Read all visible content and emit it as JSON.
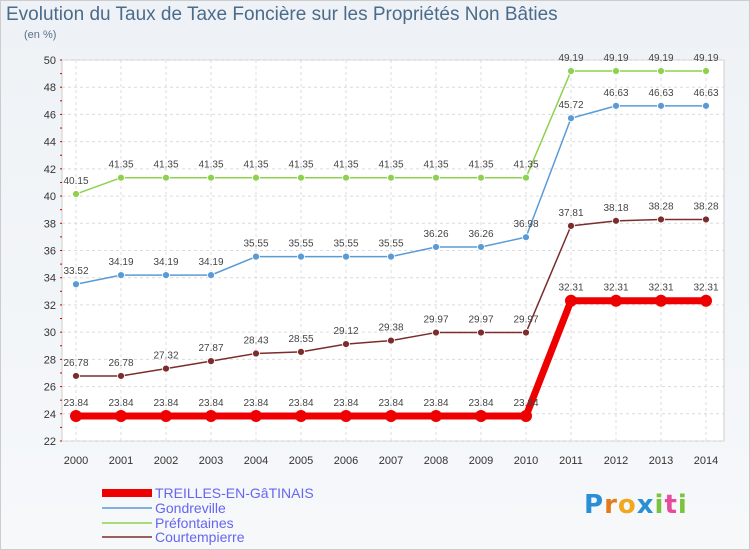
{
  "title": "Evolution du Taux de Taxe Foncière sur les Propriétés Non Bâties",
  "subtitle": "(en %)",
  "logo_text": "Proxiti",
  "chart_data": {
    "type": "line",
    "title": "Evolution du Taux de Taxe Foncière sur les Propriétés Non Bâties",
    "ylabel": "(en %)",
    "xlabel": "",
    "ylim": [
      22,
      50
    ],
    "yticks": [
      22,
      24,
      26,
      28,
      30,
      32,
      34,
      36,
      38,
      40,
      42,
      44,
      46,
      48,
      50
    ],
    "grid": true,
    "legend_position": "bottom",
    "x": [
      "2000",
      "2001",
      "2002",
      "2003",
      "2004",
      "2005",
      "2006",
      "2007",
      "2008",
      "2009",
      "2010",
      "2011",
      "2012",
      "2013",
      "2014"
    ],
    "series": [
      {
        "name": "TREILLES-EN-GâTINAIS",
        "color": "#ee0000",
        "values": [
          23.84,
          23.84,
          23.84,
          23.84,
          23.84,
          23.84,
          23.84,
          23.84,
          23.84,
          23.84,
          23.84,
          32.31,
          32.31,
          32.31,
          32.31
        ],
        "labels": [
          "23.84",
          "23.84",
          "23.84",
          "23.84",
          "23.84",
          "23.84",
          "23.84",
          "23.84",
          "23.84",
          "23.84",
          "23.84",
          "32.31",
          "32.31",
          "32.31",
          "32.31"
        ]
      },
      {
        "name": "Gondreville",
        "color": "#5b9bd5",
        "values": [
          33.52,
          34.19,
          34.19,
          34.19,
          35.55,
          35.55,
          35.55,
          35.55,
          36.26,
          36.26,
          36.98,
          45.72,
          46.63,
          46.63,
          46.63
        ],
        "labels": [
          "33.52",
          "34.19",
          "34.19",
          "34.19",
          "35.55",
          "35.55",
          "35.55",
          "35.55",
          "36.26",
          "36.26",
          "36.98",
          "45.72",
          "46.63",
          "46.63",
          "46.63"
        ]
      },
      {
        "name": "Préfontaines",
        "color": "#8fd14f",
        "values": [
          40.15,
          41.35,
          41.35,
          41.35,
          41.35,
          41.35,
          41.35,
          41.35,
          41.35,
          41.35,
          41.35,
          49.19,
          49.19,
          49.19,
          49.19
        ],
        "labels": [
          "40.15",
          "41.35",
          "41.35",
          "41.35",
          "41.35",
          "41.35",
          "41.35",
          "41.35",
          "41.35",
          "41.35",
          "41.35",
          "49.19",
          "49.19",
          "49.19",
          "49.19"
        ]
      },
      {
        "name": "Courtempierre",
        "color": "#7b2d2d",
        "values": [
          26.78,
          26.78,
          27.32,
          27.87,
          28.43,
          28.55,
          29.12,
          29.38,
          29.97,
          29.97,
          29.97,
          37.81,
          38.18,
          38.28,
          38.28
        ],
        "labels": [
          "26.78",
          "26.78",
          "27.32",
          "27.87",
          "28.43",
          "28.55",
          "29.12",
          "29.38",
          "29.97",
          "29.97",
          "29.97",
          "37.81",
          "38.18",
          "38.28",
          "38.28"
        ]
      }
    ]
  }
}
